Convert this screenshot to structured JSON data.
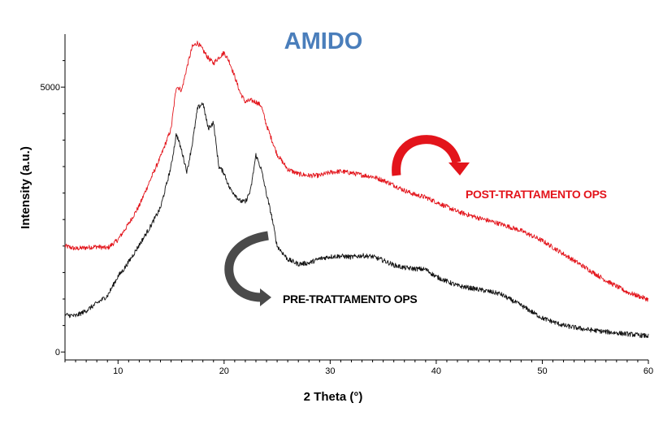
{
  "chart_data": {
    "type": "line",
    "title": "AMIDO",
    "xlabel": "2 Theta (°)",
    "ylabel": "Intensity (a.u.)",
    "xlim": [
      5,
      60
    ],
    "ylim": [
      -150,
      6000
    ],
    "x_ticks": [
      10,
      20,
      30,
      40,
      50,
      60
    ],
    "y_ticks": [
      0,
      5000
    ],
    "grid": false,
    "series": [
      {
        "name": "POST-TRATTAMENTO OPS",
        "color": "#e3141b",
        "x": [
          5,
          6,
          7,
          8,
          9,
          10,
          11,
          12,
          13,
          14,
          15,
          15.5,
          16,
          16.5,
          17,
          17.5,
          18,
          18.5,
          19,
          19.5,
          20,
          20.5,
          21,
          21.5,
          22,
          22.5,
          23,
          23.5,
          24,
          25,
          26,
          27,
          28,
          29,
          30,
          31,
          32,
          33,
          34,
          35,
          36,
          37,
          38,
          39,
          40,
          42,
          44,
          46,
          48,
          50,
          52,
          54,
          56,
          58,
          60
        ],
        "values": [
          2000,
          1950,
          1970,
          1990,
          1960,
          2120,
          2420,
          2760,
          3230,
          3680,
          4210,
          5020,
          4940,
          5380,
          5760,
          5840,
          5700,
          5550,
          5450,
          5560,
          5650,
          5480,
          5200,
          4900,
          4720,
          4750,
          4720,
          4650,
          4280,
          3730,
          3450,
          3360,
          3330,
          3330,
          3390,
          3410,
          3380,
          3340,
          3310,
          3240,
          3150,
          3050,
          2970,
          2920,
          2830,
          2650,
          2530,
          2420,
          2290,
          2100,
          1850,
          1600,
          1350,
          1130,
          990
        ]
      },
      {
        "name": "PRE-TRATTAMENTO OPS",
        "color": "#111111",
        "x": [
          5,
          6,
          7,
          8,
          9,
          10,
          10.5,
          11,
          12,
          13,
          14,
          15,
          15.5,
          16,
          16.5,
          17,
          17.5,
          18,
          18.5,
          19,
          19.5,
          20,
          20.5,
          21,
          21.5,
          22,
          22.5,
          23,
          23.5,
          24,
          24.5,
          25,
          26,
          27,
          28,
          29,
          30,
          31,
          32,
          33,
          34,
          35,
          36,
          37,
          38,
          39,
          40,
          42,
          44,
          46,
          48,
          50,
          52,
          54,
          56,
          58,
          60
        ],
        "values": [
          700,
          680,
          780,
          920,
          1060,
          1430,
          1550,
          1700,
          2020,
          2350,
          2720,
          3500,
          4120,
          3800,
          3400,
          3930,
          4600,
          4700,
          4220,
          4330,
          3500,
          3380,
          3100,
          2980,
          2850,
          2830,
          3050,
          3720,
          3450,
          2980,
          2550,
          2000,
          1750,
          1660,
          1680,
          1760,
          1800,
          1810,
          1790,
          1820,
          1800,
          1730,
          1640,
          1590,
          1570,
          1560,
          1420,
          1250,
          1180,
          1100,
          880,
          640,
          500,
          430,
          380,
          340,
          300
        ]
      }
    ],
    "annotations": [
      {
        "text": "POST-TRATTAMENTO OPS",
        "color": "#e3141b",
        "arrow": "curved-clockwise",
        "arrow_color": "#e3141b"
      },
      {
        "text": "PRE-TRATTAMENTO OPS",
        "color": "#000000",
        "arrow": "curved-counterclockwise",
        "arrow_color": "#4a4a4a"
      }
    ]
  },
  "colors": {
    "title": "#4a7ebb",
    "axis": "#000000",
    "post": "#e3141b",
    "pre": "#111111",
    "pre_arrow": "#4a4a4a"
  }
}
